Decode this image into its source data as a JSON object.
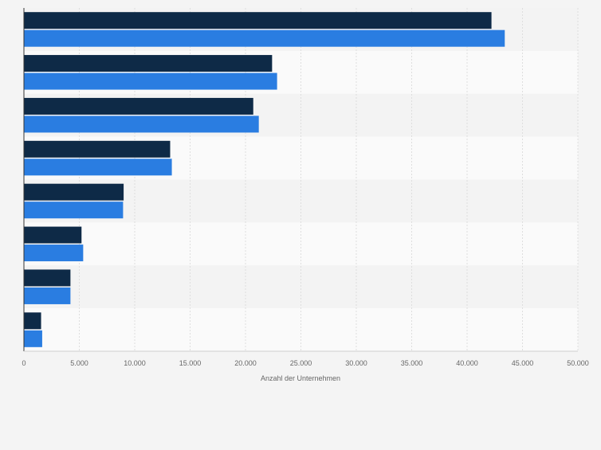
{
  "chart_data": {
    "type": "bar",
    "orientation": "horizontal",
    "categories": [
      "",
      "",
      "",
      "",
      "",
      "",
      "",
      ""
    ],
    "series": [
      {
        "values": [
          42200,
          22400,
          20700,
          13200,
          9000,
          5200,
          4200,
          1550
        ],
        "color": "#0e2a47"
      },
      {
        "values": [
          43400,
          22850,
          21200,
          13350,
          8950,
          5350,
          4200,
          1650
        ],
        "color": "#2a7de1"
      }
    ],
    "xlabel": "Anzahl der Unternehmen",
    "xlim": [
      0,
      50000
    ],
    "xticks": [
      0,
      5000,
      10000,
      15000,
      20000,
      25000,
      30000,
      35000,
      40000,
      45000,
      50000
    ],
    "xtick_labels": [
      "0",
      "5.000",
      "10.000",
      "15.000",
      "20.000",
      "25.000",
      "30.000",
      "35.000",
      "40.000",
      "45.000",
      "50.000"
    ],
    "grid": "vertical",
    "legend": "none"
  }
}
